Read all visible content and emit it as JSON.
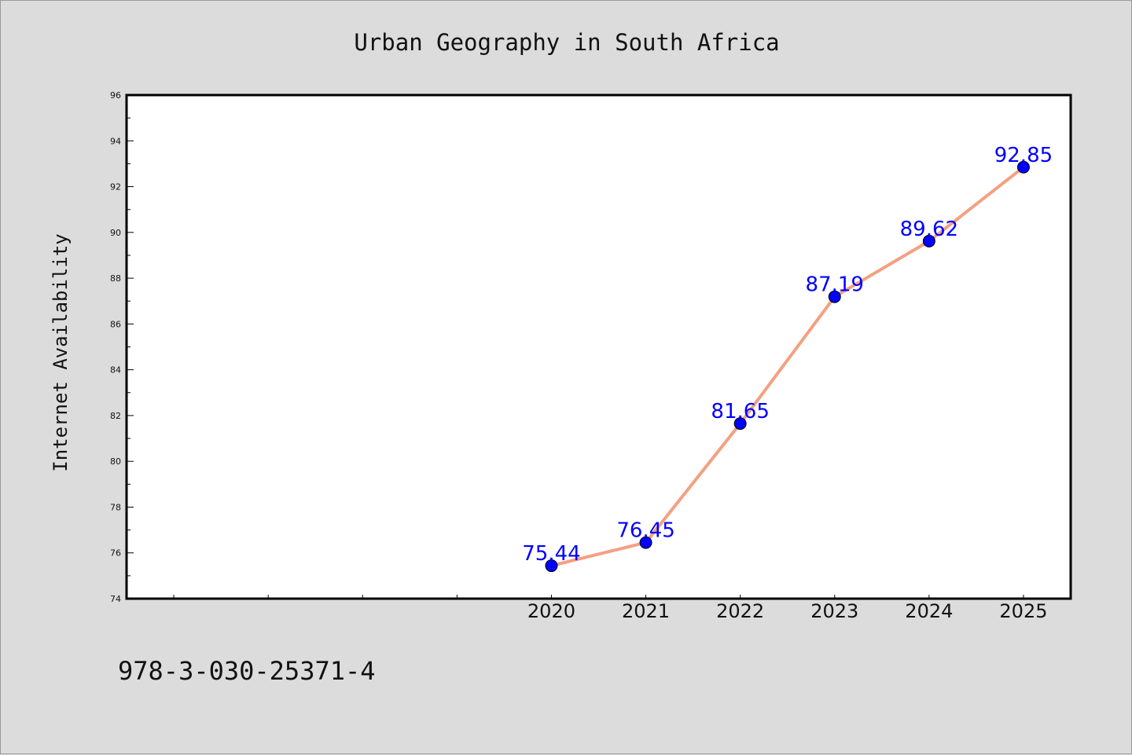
{
  "chart_data": {
    "type": "line",
    "title": "Urban Geography in South Africa",
    "xlabel": "",
    "ylabel": "Internet Availability",
    "x": [
      2020,
      2021,
      2022,
      2023,
      2024,
      2025
    ],
    "x_tick_labels": [
      "2020",
      "2021",
      "2022",
      "2023",
      "2024",
      "2025"
    ],
    "xlim": [
      2015.5,
      2025.5
    ],
    "series": [
      {
        "values": [
          75.44,
          76.45,
          81.65,
          87.19,
          89.62,
          92.85
        ],
        "data_labels": [
          "75.44",
          "76.45",
          "81.65",
          "87.19",
          "89.62",
          "92.85"
        ],
        "line_color": "#f4a082",
        "marker_color": "#0000ff"
      }
    ],
    "ylim": [
      74,
      96
    ],
    "y_ticks": [
      74,
      76,
      78,
      80,
      82,
      84,
      86,
      88,
      90,
      92,
      94,
      96
    ],
    "grid": false,
    "legend": "none"
  },
  "footer": {
    "isbn": "978-3-030-25371-4"
  },
  "colors": {
    "background": "#dcdcdc",
    "plot_background": "#ffffff",
    "axes": "#000000"
  }
}
